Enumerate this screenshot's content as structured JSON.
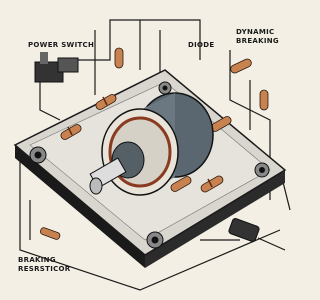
{
  "labels": [
    "POWER SWITCH",
    "DIODE",
    "DYNAMIC",
    "BREAKING",
    "BRAKING",
    "RESRSTICOR"
  ]
}
